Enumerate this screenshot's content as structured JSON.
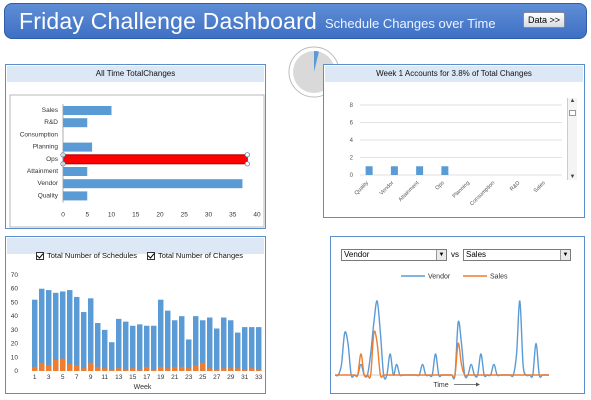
{
  "header": {
    "title": "Friday Challenge Dashboard",
    "subtitle": "Schedule Changes over Time",
    "data_button": "Data >>"
  },
  "pie": {
    "fraction": 0.038,
    "colors": {
      "slice": "#5b9bd5",
      "rest": "#d9d9d9"
    }
  },
  "panels": {
    "all_time": {
      "title": "All Time TotalChanges"
    },
    "week1": {
      "title": "Week 1 Accounts for 3.8% of Total Changes"
    },
    "schedules": {
      "check1": "Total Number of Schedules",
      "check2": "Total Number of Changes"
    },
    "compare": {
      "select_a": "Vendor",
      "vs": "vs",
      "select_b": "Sales"
    }
  },
  "chart_data": [
    {
      "type": "bar",
      "orientation": "horizontal",
      "title": "All Time TotalChanges",
      "categories": [
        "Sales",
        "R&D",
        "Consumption",
        "Planning",
        "Ops",
        "Attainment",
        "Vendor",
        "Quality"
      ],
      "values": [
        10,
        5,
        0,
        6,
        38,
        5,
        37,
        5
      ],
      "highlight": "Ops",
      "xlim": [
        0,
        40
      ],
      "xticks": [
        0,
        5,
        10,
        15,
        20,
        25,
        30,
        35,
        40
      ],
      "colors": {
        "bar": "#5b9bd5",
        "highlight": "#ff0000"
      }
    },
    {
      "type": "bar",
      "title": "Week 1 Accounts for 3.8% of Total Changes",
      "categories": [
        "Quality",
        "Vendor",
        "Attainment",
        "Ops",
        "Planning",
        "Consumption",
        "R&D",
        "Sales"
      ],
      "values": [
        1,
        1,
        1,
        1,
        0,
        0,
        0,
        0
      ],
      "ylim": [
        0,
        8
      ],
      "yticks": [
        0,
        1,
        2,
        3,
        4,
        5,
        6,
        7,
        8
      ],
      "grid": true,
      "colors": {
        "bar": "#5b9bd5"
      }
    },
    {
      "type": "bar",
      "stacked": true,
      "xlabel": "Week",
      "x": [
        1,
        2,
        3,
        4,
        5,
        6,
        7,
        8,
        9,
        10,
        11,
        12,
        13,
        14,
        15,
        16,
        17,
        18,
        19,
        20,
        21,
        22,
        23,
        24,
        25,
        26,
        27,
        28,
        29,
        30,
        31,
        32,
        33
      ],
      "xtick_labels": [
        "1",
        "3",
        "5",
        "7",
        "9",
        "11",
        "13",
        "15",
        "17",
        "19",
        "21",
        "23",
        "25",
        "27",
        "29",
        "31",
        "33"
      ],
      "ylim": [
        0,
        70
      ],
      "yticks": [
        0,
        10,
        20,
        30,
        40,
        50,
        60,
        70
      ],
      "series": [
        {
          "name": "Total Number of Schedules",
          "color": "#5b9bd5",
          "values": [
            52,
            60,
            59,
            57,
            58,
            59,
            54,
            43,
            53,
            35,
            30,
            21,
            38,
            36,
            33,
            34,
            33,
            33,
            52,
            44,
            37,
            40,
            23,
            40,
            37,
            39,
            31,
            39,
            37,
            28,
            32,
            32,
            32
          ]
        },
        {
          "name": "Total Number of Changes",
          "color": "#ed7d31",
          "values": [
            3,
            6,
            4,
            8,
            9,
            5,
            4,
            2,
            6,
            3,
            2,
            1,
            2,
            1,
            2,
            1,
            3,
            1,
            3,
            2,
            3,
            3,
            2,
            4,
            6,
            2,
            1,
            2,
            2,
            2,
            1,
            2,
            1
          ]
        }
      ]
    },
    {
      "type": "line",
      "xlabel": "Time",
      "series": [
        {
          "name": "Vendor",
          "color": "#5b9bd5",
          "values": [
            0,
            0,
            1,
            4,
            3,
            0,
            0,
            0,
            1,
            0,
            0,
            2,
            5,
            7,
            4,
            0,
            0,
            2,
            0,
            1,
            0,
            0,
            0,
            0,
            0,
            0,
            0,
            1,
            0,
            0,
            0,
            2,
            0,
            0,
            0,
            0,
            0,
            0,
            5,
            3,
            0,
            0,
            1,
            0,
            0,
            2,
            0,
            0,
            0,
            1,
            0,
            0,
            0,
            0,
            0,
            0,
            2,
            7,
            1,
            0,
            0,
            0,
            3,
            0,
            0,
            0,
            0
          ]
        },
        {
          "name": "Sales",
          "color": "#ed7d31",
          "values": [
            0,
            0,
            0,
            0,
            0,
            0,
            0,
            0,
            2,
            0,
            0,
            0,
            4,
            3,
            0,
            0,
            0,
            0,
            0,
            0,
            0,
            0,
            0,
            0,
            0,
            0,
            0,
            0,
            0,
            0,
            0,
            0,
            0,
            0,
            0,
            0,
            0,
            0,
            3,
            1,
            0,
            0,
            0,
            0,
            0,
            0,
            0,
            0,
            0,
            0,
            0,
            0,
            0,
            0,
            0,
            0,
            0,
            0,
            0,
            0,
            0,
            0,
            0,
            0,
            0,
            0,
            0
          ]
        }
      ]
    }
  ]
}
